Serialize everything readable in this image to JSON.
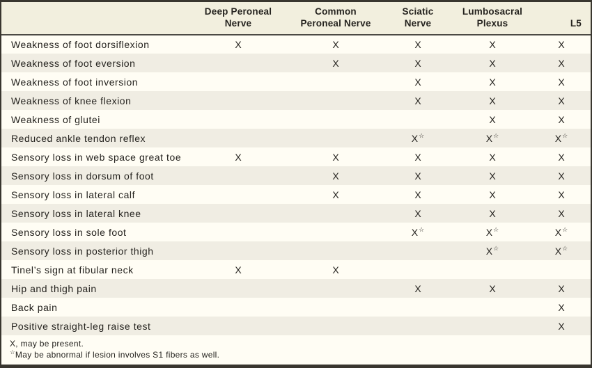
{
  "symbols": {
    "footnote_marker": "☆",
    "present_marker": "X"
  },
  "colors": {
    "header_bg": "#f2efde",
    "row_bg": "#fffdf4",
    "row_alt_bg": "#f0ede3",
    "border_strong": "#39362f",
    "border_line": "#4c4a44",
    "text": "#25231f"
  },
  "table": {
    "columns": [
      {
        "line1": "Deep Peroneal",
        "line2": "Nerve"
      },
      {
        "line1": "Common",
        "line2": "Peroneal Nerve"
      },
      {
        "line1": "Sciatic",
        "line2": "Nerve"
      },
      {
        "line1": "Lumbosacral",
        "line2": "Plexus"
      },
      {
        "line1": "",
        "line2": "L5"
      }
    ],
    "rows": [
      {
        "label": "Weakness of foot dorsiflexion",
        "marks": [
          "X",
          "X",
          "X",
          "X",
          "X"
        ]
      },
      {
        "label": "Weakness of foot eversion",
        "marks": [
          "",
          "X",
          "X",
          "X",
          "X"
        ]
      },
      {
        "label": "Weakness of foot inversion",
        "marks": [
          "",
          "",
          "X",
          "X",
          "X"
        ]
      },
      {
        "label": "Weakness of knee flexion",
        "marks": [
          "",
          "",
          "X",
          "X",
          "X"
        ]
      },
      {
        "label": "Weakness of glutei",
        "marks": [
          "",
          "",
          "",
          "X",
          "X"
        ]
      },
      {
        "label": "Reduced ankle tendon reflex",
        "marks": [
          "",
          "",
          "X*",
          "X*",
          "X*"
        ]
      },
      {
        "label": "Sensory loss in web space great toe",
        "marks": [
          "X",
          "X",
          "X",
          "X",
          "X"
        ]
      },
      {
        "label": "Sensory loss in dorsum of foot",
        "marks": [
          "",
          "X",
          "X",
          "X",
          "X"
        ]
      },
      {
        "label": "Sensory loss in lateral calf",
        "marks": [
          "",
          "X",
          "X",
          "X",
          "X"
        ]
      },
      {
        "label": "Sensory loss in lateral knee",
        "marks": [
          "",
          "",
          "X",
          "X",
          "X"
        ]
      },
      {
        "label": "Sensory loss in sole foot",
        "marks": [
          "",
          "",
          "X*",
          "X*",
          "X*"
        ]
      },
      {
        "label": "Sensory loss in posterior thigh",
        "marks": [
          "",
          "",
          "",
          "X*",
          "X*"
        ]
      },
      {
        "label": "Tinel’s sign at fibular neck",
        "marks": [
          "X",
          "X",
          "",
          "",
          ""
        ]
      },
      {
        "label": "Hip and thigh pain",
        "marks": [
          "",
          "",
          "X",
          "X",
          "X"
        ]
      },
      {
        "label": "Back pain",
        "marks": [
          "",
          "",
          "",
          "",
          "X"
        ]
      },
      {
        "label": "Positive straight-leg raise test",
        "marks": [
          "",
          "",
          "",
          "",
          "X"
        ]
      }
    ]
  },
  "footnotes": [
    "X, may be present.",
    "May be abnormal if lesion involves S1 fibers as well."
  ]
}
